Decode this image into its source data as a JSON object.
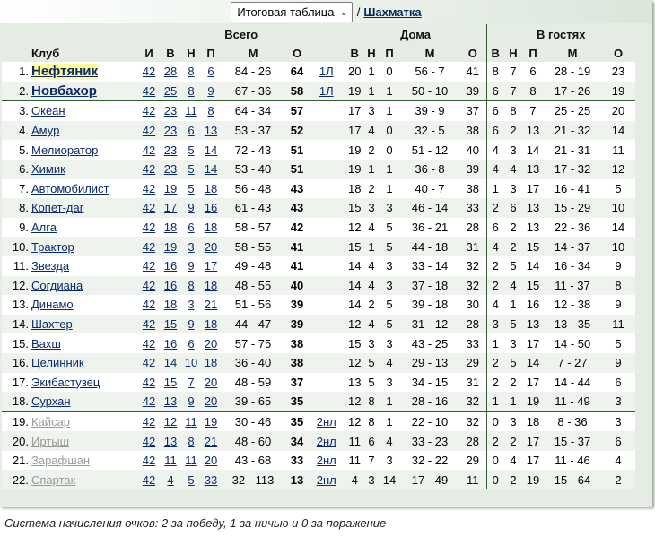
{
  "nav": {
    "select_value": "Итоговая таблица",
    "separator": "/",
    "link_label": "Шахматка"
  },
  "headers": {
    "total": "Всего",
    "home": "Дома",
    "away": "В гостях",
    "club": "Клуб",
    "g": "И",
    "w": "В",
    "d": "Н",
    "l": "П",
    "m": "М",
    "o": "О"
  },
  "rows": [
    {
      "pos": "1.",
      "club": "Нефтяник",
      "g": "42",
      "w": "28",
      "d": "8",
      "l": "6",
      "m": "84 - 26",
      "o": "64",
      "note": "1Л",
      "hg": "20",
      "hw": "1",
      "hd": "0",
      "hm": "56 - 7",
      "ho": "41",
      "ag": "8",
      "aw": "7",
      "ad": "6",
      "am": "28 - 19",
      "ao": "23"
    },
    {
      "pos": "2.",
      "club": "Новбахор",
      "g": "42",
      "w": "25",
      "d": "8",
      "l": "9",
      "m": "67 - 36",
      "o": "58",
      "note": "1Л",
      "hg": "19",
      "hw": "1",
      "hd": "1",
      "hm": "50 - 10",
      "ho": "39",
      "ag": "6",
      "aw": "7",
      "ad": "8",
      "am": "17 - 26",
      "ao": "19"
    },
    {
      "pos": "3.",
      "club": "Океан",
      "g": "42",
      "w": "23",
      "d": "11",
      "l": "8",
      "m": "64 - 34",
      "o": "57",
      "note": "",
      "hg": "17",
      "hw": "3",
      "hd": "1",
      "hm": "39 - 9",
      "ho": "37",
      "ag": "6",
      "aw": "8",
      "ad": "7",
      "am": "25 - 25",
      "ao": "20"
    },
    {
      "pos": "4.",
      "club": "Амур",
      "g": "42",
      "w": "23",
      "d": "6",
      "l": "13",
      "m": "53 - 37",
      "o": "52",
      "note": "",
      "hg": "17",
      "hw": "4",
      "hd": "0",
      "hm": "32 - 5",
      "ho": "38",
      "ag": "6",
      "aw": "2",
      "ad": "13",
      "am": "21 - 32",
      "ao": "14"
    },
    {
      "pos": "5.",
      "club": "Мелиоратор",
      "g": "42",
      "w": "23",
      "d": "5",
      "l": "14",
      "m": "72 - 43",
      "o": "51",
      "note": "",
      "hg": "19",
      "hw": "2",
      "hd": "0",
      "hm": "51 - 12",
      "ho": "40",
      "ag": "4",
      "aw": "3",
      "ad": "14",
      "am": "21 - 31",
      "ao": "11"
    },
    {
      "pos": "6.",
      "club": "Химик",
      "g": "42",
      "w": "23",
      "d": "5",
      "l": "14",
      "m": "53 - 40",
      "o": "51",
      "note": "",
      "hg": "19",
      "hw": "1",
      "hd": "1",
      "hm": "36 - 8",
      "ho": "39",
      "ag": "4",
      "aw": "4",
      "ad": "13",
      "am": "17 - 32",
      "ao": "12"
    },
    {
      "pos": "7.",
      "club": "Автомобилист",
      "g": "42",
      "w": "19",
      "d": "5",
      "l": "18",
      "m": "56 - 48",
      "o": "43",
      "note": "",
      "hg": "18",
      "hw": "2",
      "hd": "1",
      "hm": "40 - 7",
      "ho": "38",
      "ag": "1",
      "aw": "3",
      "ad": "17",
      "am": "16 - 41",
      "ao": "5"
    },
    {
      "pos": "8.",
      "club": "Копет-даг",
      "g": "42",
      "w": "17",
      "d": "9",
      "l": "16",
      "m": "61 - 43",
      "o": "43",
      "note": "",
      "hg": "15",
      "hw": "3",
      "hd": "3",
      "hm": "46 - 14",
      "ho": "33",
      "ag": "2",
      "aw": "6",
      "ad": "13",
      "am": "15 - 29",
      "ao": "10"
    },
    {
      "pos": "9.",
      "club": "Алга",
      "g": "42",
      "w": "18",
      "d": "6",
      "l": "18",
      "m": "58 - 57",
      "o": "42",
      "note": "",
      "hg": "12",
      "hw": "4",
      "hd": "5",
      "hm": "36 - 21",
      "ho": "28",
      "ag": "6",
      "aw": "2",
      "ad": "13",
      "am": "22 - 36",
      "ao": "14"
    },
    {
      "pos": "10.",
      "club": "Трактор",
      "g": "42",
      "w": "19",
      "d": "3",
      "l": "20",
      "m": "58 - 55",
      "o": "41",
      "note": "",
      "hg": "15",
      "hw": "1",
      "hd": "5",
      "hm": "44 - 18",
      "ho": "31",
      "ag": "4",
      "aw": "2",
      "ad": "15",
      "am": "14 - 37",
      "ao": "10"
    },
    {
      "pos": "11.",
      "club": "Звезда",
      "g": "42",
      "w": "16",
      "d": "9",
      "l": "17",
      "m": "49 - 48",
      "o": "41",
      "note": "",
      "hg": "14",
      "hw": "4",
      "hd": "3",
      "hm": "33 - 14",
      "ho": "32",
      "ag": "2",
      "aw": "5",
      "ad": "14",
      "am": "16 - 34",
      "ao": "9"
    },
    {
      "pos": "12.",
      "club": "Согдиана",
      "g": "42",
      "w": "16",
      "d": "8",
      "l": "18",
      "m": "48 - 55",
      "o": "40",
      "note": "",
      "hg": "14",
      "hw": "4",
      "hd": "3",
      "hm": "37 - 18",
      "ho": "32",
      "ag": "2",
      "aw": "4",
      "ad": "15",
      "am": "11 - 37",
      "ao": "8"
    },
    {
      "pos": "13.",
      "club": "Динамо",
      "g": "42",
      "w": "18",
      "d": "3",
      "l": "21",
      "m": "51 - 56",
      "o": "39",
      "note": "",
      "hg": "14",
      "hw": "2",
      "hd": "5",
      "hm": "39 - 18",
      "ho": "30",
      "ag": "4",
      "aw": "1",
      "ad": "16",
      "am": "12 - 38",
      "ao": "9"
    },
    {
      "pos": "14.",
      "club": "Шахтер",
      "g": "42",
      "w": "15",
      "d": "9",
      "l": "18",
      "m": "44 - 47",
      "o": "39",
      "note": "",
      "hg": "12",
      "hw": "4",
      "hd": "5",
      "hm": "31 - 12",
      "ho": "28",
      "ag": "3",
      "aw": "5",
      "ad": "13",
      "am": "13 - 35",
      "ao": "11"
    },
    {
      "pos": "15.",
      "club": "Вахш",
      "g": "42",
      "w": "16",
      "d": "6",
      "l": "20",
      "m": "57 - 75",
      "o": "38",
      "note": "",
      "hg": "15",
      "hw": "3",
      "hd": "3",
      "hm": "43 - 25",
      "ho": "33",
      "ag": "1",
      "aw": "3",
      "ad": "17",
      "am": "14 - 50",
      "ao": "5"
    },
    {
      "pos": "16.",
      "club": "Целинник",
      "g": "42",
      "w": "14",
      "d": "10",
      "l": "18",
      "m": "36 - 40",
      "o": "38",
      "note": "",
      "hg": "12",
      "hw": "5",
      "hd": "4",
      "hm": "29 - 13",
      "ho": "29",
      "ag": "2",
      "aw": "5",
      "ad": "14",
      "am": "7 - 27",
      "ao": "9"
    },
    {
      "pos": "17.",
      "club": "Экибастузец",
      "g": "42",
      "w": "15",
      "d": "7",
      "l": "20",
      "m": "48 - 59",
      "o": "37",
      "note": "",
      "hg": "13",
      "hw": "5",
      "hd": "3",
      "hm": "34 - 15",
      "ho": "31",
      "ag": "2",
      "aw": "2",
      "ad": "17",
      "am": "14 - 44",
      "ao": "6"
    },
    {
      "pos": "18.",
      "club": "Сурхан",
      "g": "42",
      "w": "13",
      "d": "9",
      "l": "20",
      "m": "39 - 65",
      "o": "35",
      "note": "",
      "hg": "12",
      "hw": "8",
      "hd": "1",
      "hm": "28 - 16",
      "ho": "32",
      "ag": "1",
      "aw": "1",
      "ad": "19",
      "am": "11 - 49",
      "ao": "3"
    },
    {
      "pos": "19.",
      "club": "Кайсар",
      "g": "42",
      "w": "12",
      "d": "11",
      "l": "19",
      "m": "30 - 46",
      "o": "35",
      "note": "2нл",
      "hg": "12",
      "hw": "8",
      "hd": "1",
      "hm": "22 - 10",
      "ho": "32",
      "ag": "0",
      "aw": "3",
      "ad": "18",
      "am": "8 - 36",
      "ao": "3"
    },
    {
      "pos": "20.",
      "club": "Иртыш",
      "g": "42",
      "w": "13",
      "d": "8",
      "l": "21",
      "m": "48 - 60",
      "o": "34",
      "note": "2нл",
      "hg": "11",
      "hw": "6",
      "hd": "4",
      "hm": "33 - 23",
      "ho": "28",
      "ag": "2",
      "aw": "2",
      "ad": "17",
      "am": "15 - 37",
      "ao": "6"
    },
    {
      "pos": "21.",
      "club": "Зарафшан",
      "g": "42",
      "w": "11",
      "d": "11",
      "l": "20",
      "m": "43 - 68",
      "o": "33",
      "note": "2нл",
      "hg": "11",
      "hw": "7",
      "hd": "3",
      "hm": "32 - 22",
      "ho": "29",
      "ag": "0",
      "aw": "4",
      "ad": "17",
      "am": "11 - 46",
      "ao": "4"
    },
    {
      "pos": "22.",
      "club": "Спартак",
      "g": "42",
      "w": "4",
      "d": "5",
      "l": "33",
      "m": "32 - 113",
      "o": "13",
      "note": "2нл",
      "hg": "4",
      "hw": "3",
      "hd": "14",
      "hm": "17 - 49",
      "ho": "11",
      "ag": "0",
      "aw": "2",
      "ad": "19",
      "am": "15 - 64",
      "ao": "2"
    }
  ],
  "footer": "Система начисления очков: 2 за победу, 1 за ничью и 0 за поражение",
  "colors": {
    "background": "#e4ece4",
    "link": "#0a2a6b",
    "divider": "#2f5f2f",
    "relegated": "#9a9a9a",
    "highlight": "#ffff9c"
  }
}
